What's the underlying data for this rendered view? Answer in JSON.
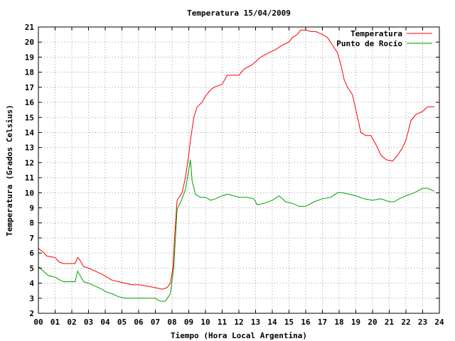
{
  "chart_data": {
    "type": "line",
    "title": "Temperatura 15/04/2009",
    "xlabel": "Tiempo (Hora Local Argentina)",
    "ylabel": "Temperatura (Grados Celsius)",
    "xlim": [
      0,
      24
    ],
    "ylim": [
      2,
      21
    ],
    "xticks": [
      {
        "value": 0,
        "label": "00"
      },
      {
        "value": 1,
        "label": "01"
      },
      {
        "value": 2,
        "label": "02"
      },
      {
        "value": 3,
        "label": "03"
      },
      {
        "value": 4,
        "label": "04"
      },
      {
        "value": 5,
        "label": "05"
      },
      {
        "value": 6,
        "label": "06"
      },
      {
        "value": 7,
        "label": "07"
      },
      {
        "value": 8,
        "label": "08"
      },
      {
        "value": 9,
        "label": "09"
      },
      {
        "value": 10,
        "label": "10"
      },
      {
        "value": 11,
        "label": "11"
      },
      {
        "value": 12,
        "label": "12"
      },
      {
        "value": 13,
        "label": "13"
      },
      {
        "value": 14,
        "label": "14"
      },
      {
        "value": 15,
        "label": "15"
      },
      {
        "value": 16,
        "label": "16"
      },
      {
        "value": 17,
        "label": "17"
      },
      {
        "value": 18,
        "label": "18"
      },
      {
        "value": 19,
        "label": "19"
      },
      {
        "value": 20,
        "label": "20"
      },
      {
        "value": 21,
        "label": "21"
      },
      {
        "value": 22,
        "label": "22"
      },
      {
        "value": 23,
        "label": "23"
      },
      {
        "value": 24,
        "label": "24"
      }
    ],
    "yticks": [
      {
        "value": 2,
        "label": "2"
      },
      {
        "value": 3,
        "label": "3"
      },
      {
        "value": 4,
        "label": "4"
      },
      {
        "value": 5,
        "label": "5"
      },
      {
        "value": 6,
        "label": "6"
      },
      {
        "value": 7,
        "label": "7"
      },
      {
        "value": 8,
        "label": "8"
      },
      {
        "value": 9,
        "label": "9"
      },
      {
        "value": 10,
        "label": "10"
      },
      {
        "value": 11,
        "label": "11"
      },
      {
        "value": 12,
        "label": "12"
      },
      {
        "value": 13,
        "label": "13"
      },
      {
        "value": 14,
        "label": "14"
      },
      {
        "value": 15,
        "label": "15"
      },
      {
        "value": 16,
        "label": "16"
      },
      {
        "value": 17,
        "label": "17"
      },
      {
        "value": 18,
        "label": "18"
      },
      {
        "value": 19,
        "label": "19"
      },
      {
        "value": 20,
        "label": "20"
      },
      {
        "value": 21,
        "label": "21"
      }
    ],
    "grid": true,
    "legend_position": "top-right",
    "series": [
      {
        "name": "Temperatura",
        "color": "#ff0000",
        "points": [
          [
            0,
            6.3
          ],
          [
            0.25,
            6.1
          ],
          [
            0.5,
            5.8
          ],
          [
            1.0,
            5.7
          ],
          [
            1.25,
            5.4
          ],
          [
            1.5,
            5.3
          ],
          [
            1.9,
            5.3
          ],
          [
            2.2,
            5.3
          ],
          [
            2.35,
            5.7
          ],
          [
            2.5,
            5.5
          ],
          [
            2.7,
            5.1
          ],
          [
            3.0,
            5.0
          ],
          [
            3.4,
            4.8
          ],
          [
            3.8,
            4.6
          ],
          [
            4.1,
            4.4
          ],
          [
            4.4,
            4.2
          ],
          [
            4.8,
            4.1
          ],
          [
            5.2,
            4.0
          ],
          [
            5.6,
            3.9
          ],
          [
            6.0,
            3.9
          ],
          [
            6.5,
            3.8
          ],
          [
            7.0,
            3.7
          ],
          [
            7.4,
            3.6
          ],
          [
            7.7,
            3.7
          ],
          [
            7.9,
            4.0
          ],
          [
            8.05,
            5.0
          ],
          [
            8.15,
            7.0
          ],
          [
            8.3,
            9.5
          ],
          [
            8.6,
            10.0
          ],
          [
            8.8,
            11.0
          ],
          [
            9.0,
            12.5
          ],
          [
            9.1,
            13.5
          ],
          [
            9.3,
            15.0
          ],
          [
            9.5,
            15.7
          ],
          [
            9.8,
            16.0
          ],
          [
            10.0,
            16.4
          ],
          [
            10.2,
            16.7
          ],
          [
            10.5,
            17.0
          ],
          [
            11.0,
            17.2
          ],
          [
            11.3,
            17.8
          ],
          [
            12.0,
            17.8
          ],
          [
            12.3,
            18.2
          ],
          [
            12.8,
            18.5
          ],
          [
            13.0,
            18.7
          ],
          [
            13.3,
            19.0
          ],
          [
            13.8,
            19.3
          ],
          [
            14.2,
            19.5
          ],
          [
            14.6,
            19.8
          ],
          [
            15.0,
            20.0
          ],
          [
            15.2,
            20.3
          ],
          [
            15.5,
            20.5
          ],
          [
            15.7,
            20.8
          ],
          [
            16.0,
            20.8
          ],
          [
            16.3,
            20.7
          ],
          [
            16.6,
            20.7
          ],
          [
            17.0,
            20.5
          ],
          [
            17.3,
            20.3
          ],
          [
            17.6,
            19.8
          ],
          [
            17.9,
            19.3
          ],
          [
            18.1,
            18.5
          ],
          [
            18.3,
            17.5
          ],
          [
            18.5,
            17.0
          ],
          [
            18.8,
            16.5
          ],
          [
            19.0,
            15.5
          ],
          [
            19.3,
            14.0
          ],
          [
            19.6,
            13.8
          ],
          [
            19.9,
            13.8
          ],
          [
            20.2,
            13.2
          ],
          [
            20.5,
            12.5
          ],
          [
            20.8,
            12.2
          ],
          [
            21.2,
            12.1
          ],
          [
            21.5,
            12.5
          ],
          [
            21.8,
            13.0
          ],
          [
            22.0,
            13.5
          ],
          [
            22.3,
            14.8
          ],
          [
            22.6,
            15.2
          ],
          [
            23.0,
            15.4
          ],
          [
            23.3,
            15.7
          ],
          [
            23.7,
            15.7
          ]
        ]
      },
      {
        "name": "Punto de Rocío",
        "color": "#00a000",
        "points": [
          [
            0,
            5.1
          ],
          [
            0.3,
            4.8
          ],
          [
            0.6,
            4.5
          ],
          [
            1.0,
            4.4
          ],
          [
            1.3,
            4.2
          ],
          [
            1.5,
            4.1
          ],
          [
            1.9,
            4.1
          ],
          [
            2.2,
            4.1
          ],
          [
            2.35,
            4.8
          ],
          [
            2.5,
            4.5
          ],
          [
            2.7,
            4.1
          ],
          [
            3.0,
            4.0
          ],
          [
            3.4,
            3.8
          ],
          [
            3.8,
            3.6
          ],
          [
            4.1,
            3.4
          ],
          [
            4.4,
            3.3
          ],
          [
            4.8,
            3.1
          ],
          [
            5.2,
            3.0
          ],
          [
            5.6,
            3.0
          ],
          [
            6.0,
            3.0
          ],
          [
            6.5,
            3.0
          ],
          [
            7.0,
            3.0
          ],
          [
            7.3,
            2.8
          ],
          [
            7.6,
            2.8
          ],
          [
            7.9,
            3.3
          ],
          [
            8.1,
            5.0
          ],
          [
            8.3,
            8.9
          ],
          [
            8.6,
            9.6
          ],
          [
            8.8,
            10.2
          ],
          [
            9.0,
            11.5
          ],
          [
            9.1,
            12.2
          ],
          [
            9.2,
            10.8
          ],
          [
            9.4,
            9.9
          ],
          [
            9.7,
            9.7
          ],
          [
            10.0,
            9.7
          ],
          [
            10.3,
            9.5
          ],
          [
            10.6,
            9.6
          ],
          [
            11.0,
            9.8
          ],
          [
            11.3,
            9.9
          ],
          [
            11.7,
            9.8
          ],
          [
            12.0,
            9.7
          ],
          [
            12.5,
            9.7
          ],
          [
            12.9,
            9.6
          ],
          [
            13.1,
            9.2
          ],
          [
            13.5,
            9.3
          ],
          [
            14.0,
            9.5
          ],
          [
            14.4,
            9.8
          ],
          [
            14.8,
            9.4
          ],
          [
            15.2,
            9.3
          ],
          [
            15.6,
            9.1
          ],
          [
            16.0,
            9.1
          ],
          [
            16.5,
            9.4
          ],
          [
            17.0,
            9.6
          ],
          [
            17.5,
            9.7
          ],
          [
            17.9,
            10.0
          ],
          [
            18.2,
            10.0
          ],
          [
            18.6,
            9.9
          ],
          [
            19.0,
            9.8
          ],
          [
            19.5,
            9.6
          ],
          [
            20.0,
            9.5
          ],
          [
            20.5,
            9.6
          ],
          [
            21.0,
            9.4
          ],
          [
            21.3,
            9.4
          ],
          [
            21.6,
            9.6
          ],
          [
            22.0,
            9.8
          ],
          [
            22.5,
            10.0
          ],
          [
            23.0,
            10.3
          ],
          [
            23.3,
            10.3
          ],
          [
            23.7,
            10.1
          ]
        ]
      }
    ]
  }
}
